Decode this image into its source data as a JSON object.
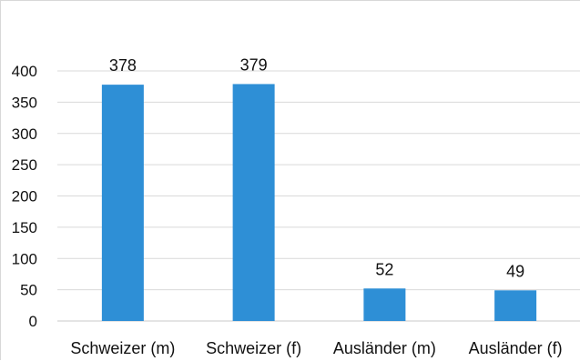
{
  "chart_data": {
    "type": "bar",
    "title": "",
    "xlabel": "",
    "ylabel": "",
    "categories": [
      "Schweizer (m)",
      "Schweizer (f)",
      "Ausländer (m)",
      "Ausländer (f)"
    ],
    "values": [
      378,
      379,
      52,
      49
    ],
    "data_labels": [
      "378",
      "379",
      "52",
      "49"
    ],
    "y_ticks": [
      0,
      50,
      100,
      150,
      200,
      250,
      300,
      350,
      400
    ],
    "ylim": [
      0,
      400
    ],
    "grid": true,
    "legend": "none",
    "bar_color": "#2e8fd6"
  }
}
